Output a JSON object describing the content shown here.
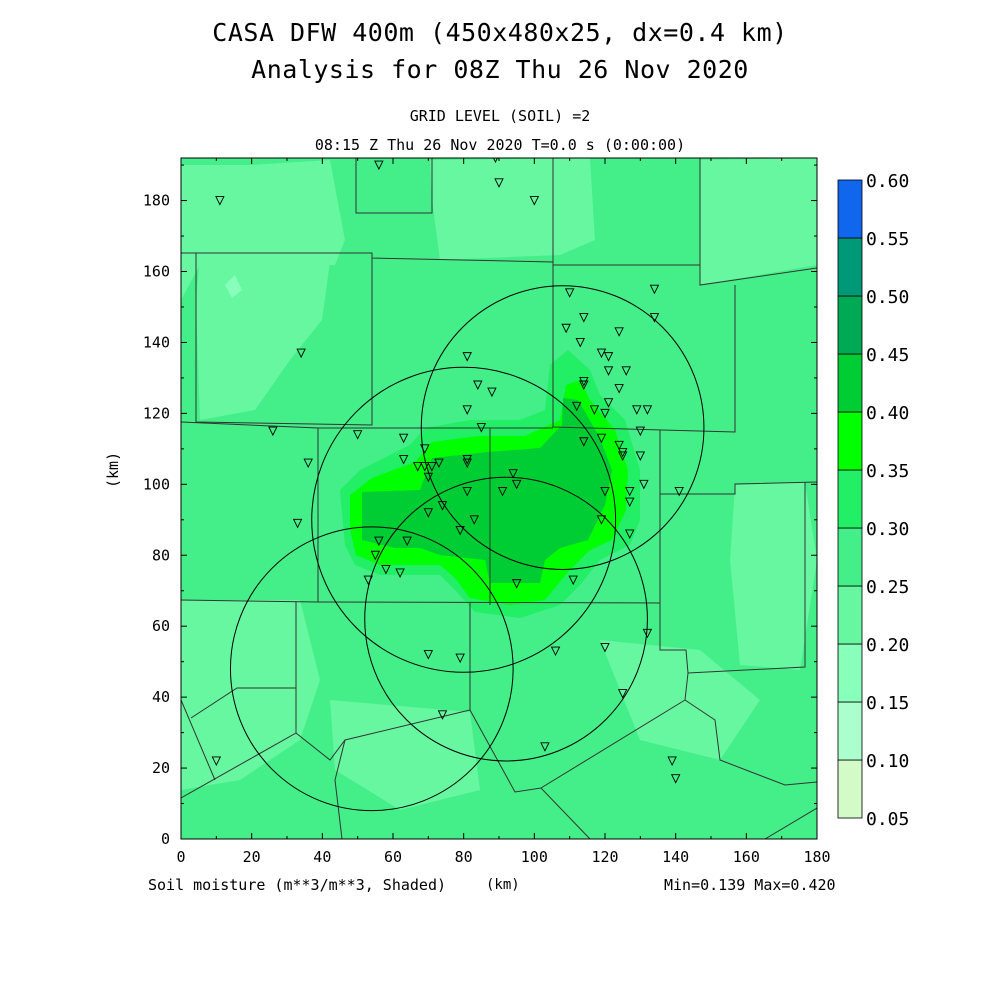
{
  "title_line1": "CASA DFW 400m (450x480x25, dx=0.4 km)",
  "title_line2": "Analysis for 08Z Thu 26 Nov 2020",
  "subtitle_grid": "GRID LEVEL (SOIL) =2",
  "subtitle_time": "08:15 Z Thu 26 Nov 2020    T=0.0 s (0:00:00)",
  "axis": {
    "xlabel": "(km)",
    "ylabel": "(km)",
    "x_ticks": [
      0,
      20,
      40,
      60,
      80,
      100,
      120,
      140,
      160,
      180
    ],
    "y_ticks": [
      0,
      20,
      40,
      60,
      80,
      100,
      120,
      140,
      160,
      180
    ],
    "xlim": [
      0,
      180
    ],
    "ylim": [
      0,
      192
    ]
  },
  "footer": {
    "variable": "Soil moisture (m**3/m**3, Shaded)",
    "unit": "(km)",
    "minmax": "Min=0.139 Max=0.420"
  },
  "colorbar": {
    "levels": [
      "0.05",
      "0.10",
      "0.15",
      "0.20",
      "0.25",
      "0.30",
      "0.35",
      "0.40",
      "0.45",
      "0.50",
      "0.55",
      "0.60"
    ],
    "colors": [
      "#d2fbc8",
      "#aaffcc",
      "#88ffbb",
      "#66f7a0",
      "#44ee88",
      "#22ee66",
      "#00ff00",
      "#00cc33",
      "#00aa55",
      "#009977",
      "#1166ee"
    ]
  },
  "chart_data": {
    "type": "heatmap",
    "variable": "Soil moisture (m**3/m**3)",
    "min": 0.139,
    "max": 0.42,
    "radar_rings": [
      {
        "cx": 108,
        "cy": 116,
        "r": 40
      },
      {
        "cx": 80,
        "cy": 90,
        "r": 43
      },
      {
        "cx": 54,
        "cy": 48,
        "r": 40
      },
      {
        "cx": 92,
        "cy": 62,
        "r": 40
      }
    ],
    "station_markers": [
      [
        11,
        180
      ],
      [
        56,
        190
      ],
      [
        89,
        192
      ],
      [
        90,
        185
      ],
      [
        100,
        180
      ],
      [
        34,
        137
      ],
      [
        26,
        115
      ],
      [
        36,
        106
      ],
      [
        33,
        89
      ],
      [
        50,
        114
      ],
      [
        63,
        113
      ],
      [
        63,
        107
      ],
      [
        67,
        105
      ],
      [
        69,
        105
      ],
      [
        70,
        102
      ],
      [
        71,
        105
      ],
      [
        73,
        106
      ],
      [
        69,
        110
      ],
      [
        70,
        92
      ],
      [
        74,
        94
      ],
      [
        81,
        121
      ],
      [
        81,
        136
      ],
      [
        84,
        128
      ],
      [
        88,
        126
      ],
      [
        85,
        116
      ],
      [
        81,
        107
      ],
      [
        81,
        106
      ],
      [
        81,
        98
      ],
      [
        83,
        90
      ],
      [
        91,
        98
      ],
      [
        95,
        100
      ],
      [
        94,
        103
      ],
      [
        95,
        72
      ],
      [
        79,
        87
      ],
      [
        64,
        84
      ],
      [
        56,
        84
      ],
      [
        55,
        80
      ],
      [
        58,
        76
      ],
      [
        62,
        75
      ],
      [
        53,
        73
      ],
      [
        70,
        52
      ],
      [
        79,
        51
      ],
      [
        74,
        35
      ],
      [
        106,
        53
      ],
      [
        103,
        26
      ],
      [
        110,
        154
      ],
      [
        134,
        155
      ],
      [
        134,
        147
      ],
      [
        109,
        144
      ],
      [
        114,
        147
      ],
      [
        113,
        140
      ],
      [
        124,
        143
      ],
      [
        119,
        137
      ],
      [
        121,
        136
      ],
      [
        121,
        132
      ],
      [
        126,
        132
      ],
      [
        114,
        129
      ],
      [
        114,
        128
      ],
      [
        124,
        127
      ],
      [
        112,
        122
      ],
      [
        117,
        121
      ],
      [
        120,
        120
      ],
      [
        121,
        123
      ],
      [
        129,
        121
      ],
      [
        132,
        121
      ],
      [
        130,
        115
      ],
      [
        114,
        112
      ],
      [
        119,
        113
      ],
      [
        124,
        111
      ],
      [
        125,
        109
      ],
      [
        125,
        108
      ],
      [
        130,
        108
      ],
      [
        120,
        98
      ],
      [
        127,
        98
      ],
      [
        127,
        95
      ],
      [
        131,
        100
      ],
      [
        141,
        98
      ],
      [
        119,
        90
      ],
      [
        127,
        86
      ],
      [
        111,
        73
      ],
      [
        120,
        54
      ],
      [
        132,
        58
      ],
      [
        125,
        41
      ],
      [
        139,
        22
      ],
      [
        140,
        17
      ],
      [
        10,
        22
      ]
    ]
  }
}
